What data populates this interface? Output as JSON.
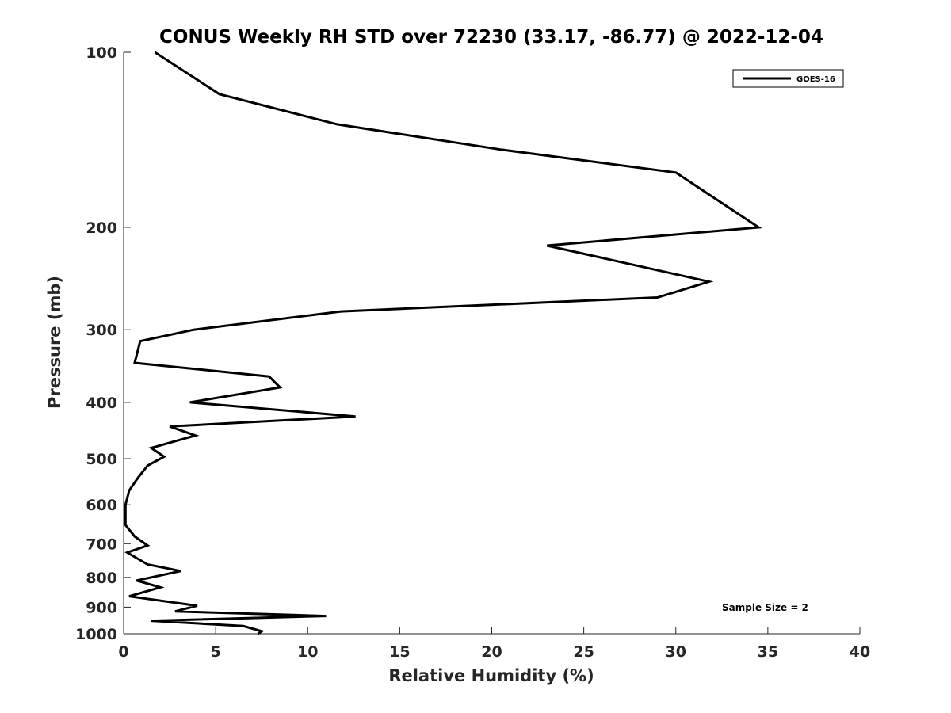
{
  "chart_data": {
    "type": "line",
    "title": "CONUS Weekly RH STD over 72230 (33.17, -86.77) @ 2022-12-04",
    "xlabel": "Relative Humidity (%)",
    "ylabel": "Pressure (mb)",
    "xlim": [
      0,
      40
    ],
    "ylim": [
      100,
      1000
    ],
    "y_scale": "log",
    "y_reversed": true,
    "grid": false,
    "legend_position": "top-right",
    "x_ticks": [
      "0",
      "5",
      "10",
      "15",
      "20",
      "25",
      "30",
      "35",
      "40"
    ],
    "y_ticks": [
      "100",
      "200",
      "300",
      "400",
      "500",
      "600",
      "700",
      "800",
      "900",
      "1000"
    ],
    "annotation": "Sample Size = 2",
    "series": [
      {
        "name": "GOES-16",
        "color": "#000000",
        "x": [
          1.7,
          5.2,
          11.6,
          20.5,
          30.0,
          34.5,
          23.0,
          31.8,
          29.0,
          11.8,
          3.8,
          0.9,
          0.6,
          7.9,
          8.5,
          3.6,
          12.6,
          2.5,
          3.9,
          1.5,
          2.2,
          1.3,
          0.8,
          0.3,
          0.1,
          0.1,
          0.6,
          1.3,
          0.2,
          1.3,
          3.1,
          0.7,
          2.0,
          0.3,
          4.0,
          2.8,
          11.0,
          1.5,
          6.5,
          7.5,
          7.3
        ],
        "y": [
          100,
          118,
          133,
          147,
          161,
          200,
          215,
          248,
          264,
          279,
          300,
          314,
          342,
          361,
          377,
          400,
          423,
          440,
          456,
          479,
          496,
          514,
          538,
          567,
          600,
          650,
          680,
          705,
          725,
          760,
          780,
          810,
          832,
          862,
          895,
          915,
          932,
          950,
          970,
          990,
          1000
        ]
      }
    ]
  }
}
